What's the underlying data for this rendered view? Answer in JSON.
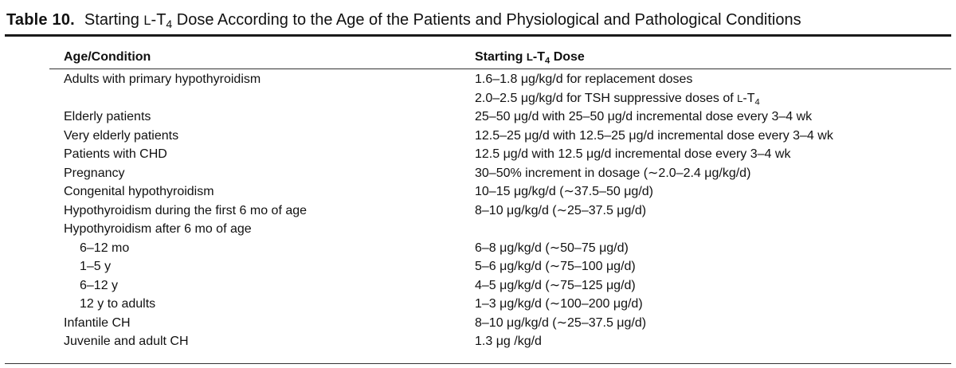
{
  "table": {
    "number_label": "Table 10.",
    "title_before": "Starting ",
    "title_prefix": "L",
    "title_drug": "-T",
    "title_sub": "4",
    "title_after": " Dose According to the Age of the Patients and Physiological and Pathological Conditions",
    "col_left_header": "Age/Condition",
    "col_right_header_before": "Starting ",
    "col_right_header_prefix": "L",
    "col_right_header_drug": "-T",
    "col_right_header_sub": "4",
    "col_right_header_after": " Dose",
    "rows": [
      {
        "condition": "Adults with primary hypothyroidism",
        "dose": "1.6–1.8 μg/kg/d for replacement doses"
      },
      {
        "condition": "",
        "dose_before": "2.0–2.5 μg/kg/d for TSH suppressive doses of ",
        "dose_prefix": "L",
        "dose_drug": "-T",
        "dose_sub": "4"
      },
      {
        "condition": "Elderly patients",
        "dose": "25–50 μg/d with 25–50 μg/d incremental dose every 3–4 wk"
      },
      {
        "condition": "Very elderly patients",
        "dose": "12.5–25 μg/d with 12.5–25 μg/d incremental dose every 3–4 wk"
      },
      {
        "condition": "Patients with CHD",
        "dose": "12.5 μg/d with 12.5 μg/d incremental dose every 3–4 wk"
      },
      {
        "condition": "Pregnancy",
        "dose": "30–50% increment in dosage (∼2.0–2.4 μg/kg/d)"
      },
      {
        "condition": "Congenital hypothyroidism",
        "dose": "10–15 μg/kg/d (∼37.5–50 μg/d)"
      },
      {
        "condition": "Hypothyroidism during the first 6 mo of age",
        "dose": "8–10 μg/kg/d (∼25–37.5 μg/d)"
      },
      {
        "condition": "Hypothyroidism after 6 mo of age",
        "dose": ""
      },
      {
        "condition": "6–12 mo",
        "dose": "6–8 μg/kg/d (∼50–75 μg/d)"
      },
      {
        "condition": "1–5 y",
        "dose": "5–6 μg/kg/d (∼75–100 μg/d)"
      },
      {
        "condition": "6–12 y",
        "dose": "4–5 μg/kg/d (∼75–125 μg/d)"
      },
      {
        "condition": "12 y to adults",
        "dose": "1–3 μg/kg/d (∼100–200 μg/d)"
      },
      {
        "condition": "Infantile CH",
        "dose": "8–10 μg/kg/d (∼25–37.5 μg/d)"
      },
      {
        "condition": "Juvenile and adult CH",
        "dose": "1.3 μg /kg/d"
      }
    ]
  }
}
